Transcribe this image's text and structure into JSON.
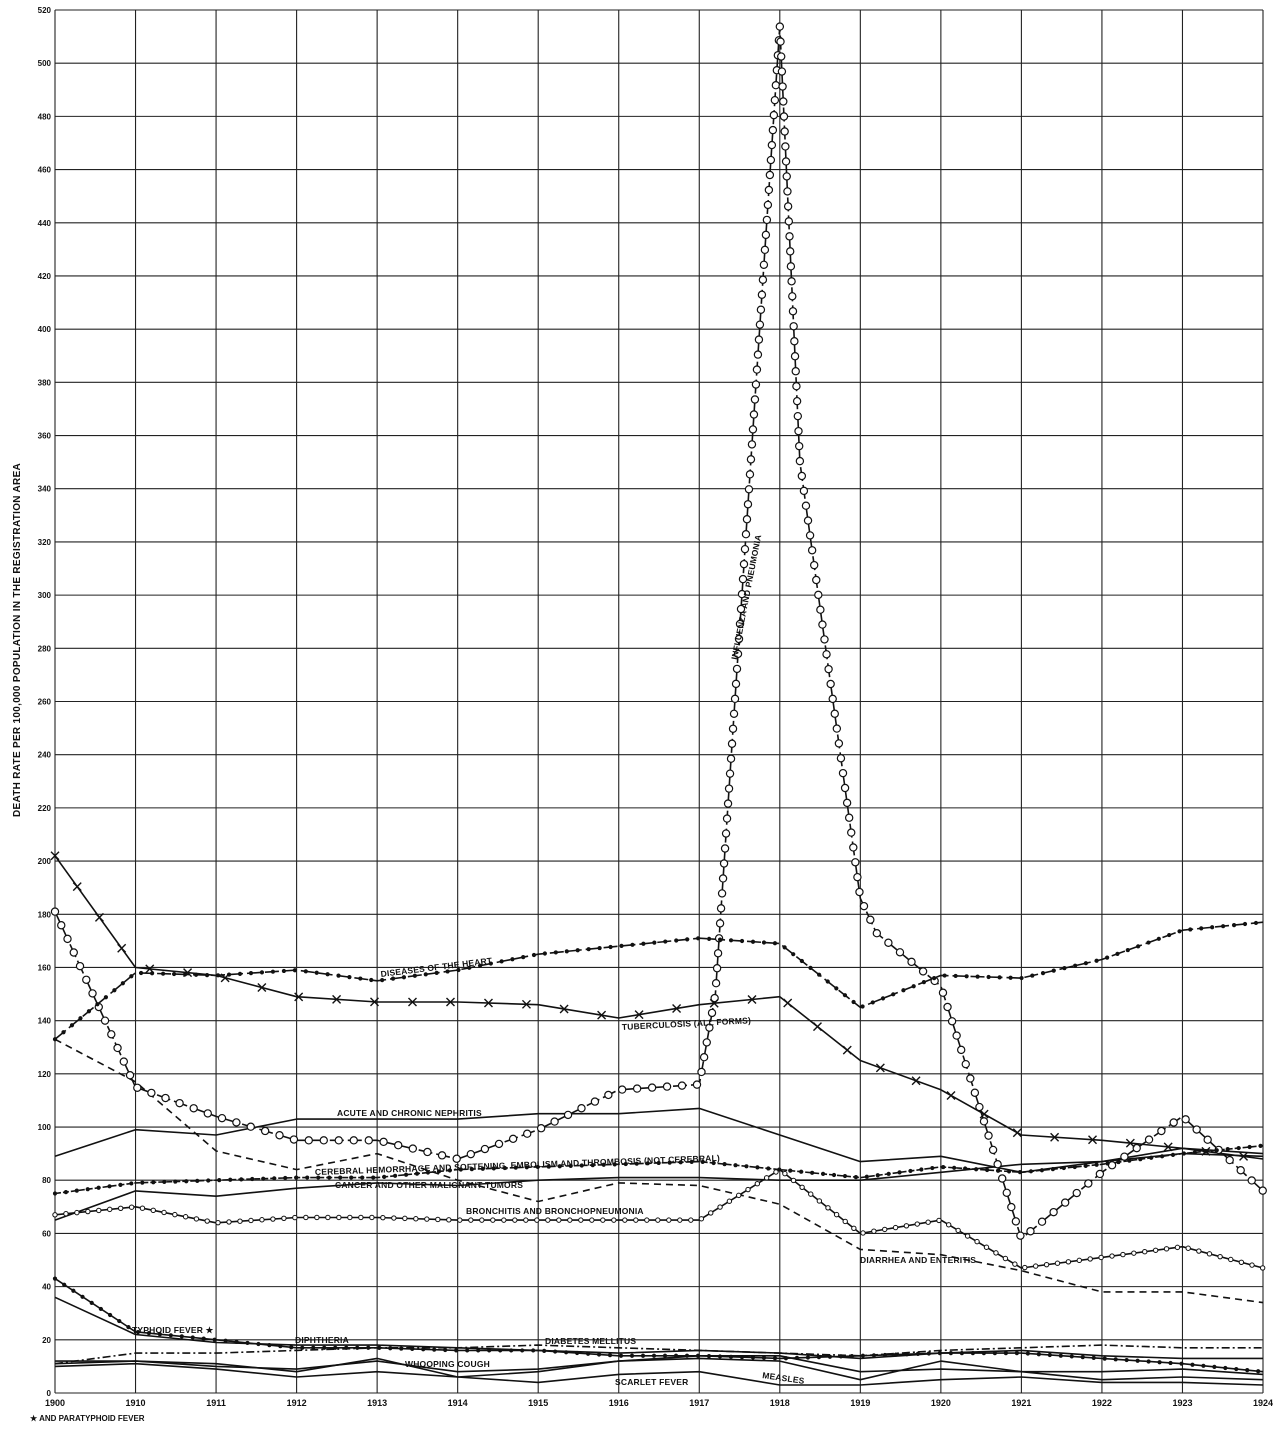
{
  "chart_data": {
    "type": "line",
    "ylabel": "DEATH RATE PER 100,000 POPULATION IN THE REGISTRATION AREA",
    "footnote": "★ AND PARATYPHOID FEVER",
    "x_tick_labels": [
      "1900",
      "1910",
      "1911",
      "1912",
      "1913",
      "1914",
      "1915",
      "1916",
      "1917",
      "1918",
      "1919",
      "1920",
      "1921",
      "1922",
      "1923",
      "1924"
    ],
    "y_tick_labels": [
      "0",
      "20",
      "40",
      "60",
      "80",
      "100",
      "120",
      "140",
      "160",
      "180",
      "200",
      "220",
      "240",
      "260",
      "280",
      "300",
      "320",
      "340",
      "360",
      "380",
      "400",
      "420",
      "440",
      "460",
      "480",
      "500",
      "520"
    ],
    "ylim": [
      0,
      520
    ],
    "grid": true,
    "series": [
      {
        "name": "INFLUENZA AND PNEUMONIA",
        "color": "#111111",
        "marker": "open-circle",
        "dash": "14,4",
        "x": [
          1900,
          1910,
          1911,
          1912,
          1913,
          1914,
          1915,
          1916,
          1917,
          1917.2,
          1918,
          1918.25,
          1919,
          1919.2,
          1920,
          1921,
          1922,
          1923,
          1924
        ],
        "y": [
          181,
          115,
          104,
          95,
          95,
          88,
          99,
          114,
          116,
          150,
          514,
          350,
          186,
          173,
          153,
          58,
          83,
          104,
          76
        ]
      },
      {
        "name": "DISEASES OF THE HEART",
        "color": "#111111",
        "marker": "dot",
        "dash": "14,4",
        "x": [
          1900,
          1910,
          1911,
          1912,
          1913,
          1914,
          1915,
          1916,
          1917,
          1918,
          1919,
          1920,
          1921,
          1922,
          1923,
          1924
        ],
        "y": [
          133,
          158,
          157,
          159,
          155,
          159,
          165,
          168,
          171,
          169,
          145,
          157,
          156,
          163,
          174,
          177
        ]
      },
      {
        "name": "TUBERCULOSIS (ALL FORMS)",
        "color": "#111111",
        "marker": "x",
        "dash": "",
        "x": [
          1900,
          1910,
          1911,
          1912,
          1913,
          1914,
          1915,
          1916,
          1917,
          1918,
          1919,
          1920,
          1921,
          1922,
          1923,
          1924
        ],
        "y": [
          202,
          160,
          157,
          149,
          147,
          147,
          146,
          141,
          146,
          149,
          125,
          114,
          97,
          95,
          92,
          88
        ]
      },
      {
        "name": "ACUTE AND CHRONIC NEPHRITIS",
        "color": "#111111",
        "marker": "none",
        "dash": "",
        "x": [
          1900,
          1910,
          1911,
          1912,
          1913,
          1914,
          1915,
          1916,
          1917,
          1918,
          1919,
          1920,
          1921,
          1922,
          1923,
          1924
        ],
        "y": [
          89,
          99,
          97,
          103,
          103,
          103,
          105,
          105,
          107,
          97,
          87,
          89,
          83,
          87,
          90,
          89
        ]
      },
      {
        "name": "CEREBRAL HEMORRHAGE AND SOFTENING, EMBOLISM AND THROMBOSIS (NOT CEREBRAL)",
        "color": "#111111",
        "marker": "dot",
        "dash": "6,2",
        "x": [
          1900,
          1910,
          1911,
          1912,
          1913,
          1914,
          1915,
          1916,
          1917,
          1918,
          1919,
          1920,
          1921,
          1922,
          1923,
          1924
        ],
        "y": [
          75,
          79,
          80,
          81,
          81,
          84,
          85,
          86,
          87,
          84,
          81,
          85,
          83,
          86,
          90,
          93
        ]
      },
      {
        "name": "CANCER AND OTHER MALIGNANT TUMORS",
        "color": "#111111",
        "marker": "none",
        "dash": "",
        "x": [
          1900,
          1910,
          1911,
          1912,
          1913,
          1914,
          1915,
          1916,
          1917,
          1918,
          1919,
          1920,
          1921,
          1922,
          1923,
          1924
        ],
        "y": [
          65,
          76,
          74,
          77,
          79,
          78,
          80,
          81,
          81,
          80,
          80,
          83,
          86,
          87,
          92,
          90
        ]
      },
      {
        "name": "BRONCHITIS AND BRONCHOPNEUMONIA",
        "color": "#111111",
        "marker": "small-circle",
        "dash": "",
        "x": [
          1900,
          1910,
          1911,
          1912,
          1913,
          1914,
          1915,
          1916,
          1917,
          1918,
          1919,
          1920,
          1921,
          1922,
          1923,
          1924
        ],
        "y": [
          67,
          70,
          64,
          66,
          66,
          65,
          65,
          65,
          65,
          84,
          60,
          65,
          47,
          51,
          55,
          47
        ]
      },
      {
        "name": "DIARRHEA AND ENTERITIS",
        "color": "#111111",
        "marker": "none",
        "dash": "7,5",
        "x": [
          1900,
          1910,
          1911,
          1912,
          1913,
          1914,
          1915,
          1916,
          1917,
          1918,
          1919,
          1920,
          1921,
          1922,
          1923,
          1924
        ],
        "y": [
          133,
          117,
          91,
          84,
          90,
          80,
          72,
          79,
          78,
          71,
          54,
          52,
          46,
          38,
          38,
          34
        ]
      },
      {
        "name": "TYPHOID FEVER ★",
        "color": "#111111",
        "marker": "dot",
        "dash": "",
        "x": [
          1900,
          1910,
          1911,
          1912,
          1913,
          1914,
          1915,
          1916,
          1917,
          1918,
          1919,
          1920,
          1921,
          1922,
          1923,
          1924
        ],
        "y": [
          43,
          23,
          20,
          17,
          17,
          16,
          16,
          14,
          14,
          13,
          14,
          15,
          15,
          13,
          11,
          8
        ]
      },
      {
        "name": "DIPHTHERIA",
        "color": "#111111",
        "marker": "none",
        "dash": "",
        "x": [
          1900,
          1910,
          1911,
          1912,
          1913,
          1914,
          1915,
          1916,
          1917,
          1918,
          1919,
          1920,
          1921,
          1922,
          1923,
          1924
        ],
        "y": [
          36,
          22,
          19,
          18,
          18,
          17,
          16,
          15,
          16,
          15,
          13,
          15,
          16,
          14,
          13,
          13
        ]
      },
      {
        "name": "DIABETES MELLITUS",
        "color": "#111111",
        "marker": "none",
        "dash": "8,3,2,3",
        "x": [
          1900,
          1910,
          1911,
          1912,
          1913,
          1914,
          1915,
          1916,
          1917,
          1918,
          1919,
          1920,
          1921,
          1922,
          1923,
          1924
        ],
        "y": [
          11,
          15,
          15,
          16,
          17,
          17,
          18,
          17,
          16,
          15,
          14,
          16,
          17,
          18,
          17,
          17
        ]
      },
      {
        "name": "WHOOPING COUGH",
        "color": "#111111",
        "marker": "none",
        "dash": "",
        "x": [
          1900,
          1910,
          1911,
          1912,
          1913,
          1914,
          1915,
          1916,
          1917,
          1918,
          1919,
          1920,
          1921,
          1922,
          1923,
          1924
        ],
        "y": [
          12,
          12,
          10,
          9,
          12,
          8,
          9,
          12,
          13,
          12,
          5,
          12,
          8,
          8,
          9,
          7
        ]
      },
      {
        "name": "SCARLET FEVER",
        "color": "#111111",
        "marker": "none",
        "dash": "",
        "x": [
          1900,
          1910,
          1911,
          1912,
          1913,
          1914,
          1915,
          1916,
          1917,
          1918,
          1919,
          1920,
          1921,
          1922,
          1923,
          1924
        ],
        "y": [
          10,
          11,
          9,
          6,
          8,
          6,
          4,
          7,
          8,
          3,
          3,
          5,
          6,
          4,
          4,
          3
        ]
      },
      {
        "name": "MEASLES",
        "color": "#111111",
        "marker": "none",
        "dash": "",
        "x": [
          1900,
          1910,
          1911,
          1912,
          1913,
          1914,
          1915,
          1916,
          1917,
          1918,
          1919,
          1920,
          1921,
          1922,
          1923,
          1924
        ],
        "y": [
          11,
          12,
          11,
          8,
          13,
          6,
          8,
          12,
          14,
          14,
          8,
          9,
          8,
          5,
          6,
          5
        ]
      }
    ]
  },
  "labels": {
    "influenza": "INFLUENZA AND PNEUMONIA",
    "heart": "DISEASES OF THE HEART",
    "tuberculosis": "TUBERCULOSIS (ALL FORMS)",
    "nephritis": "ACUTE AND CHRONIC NEPHRITIS",
    "cerebral": "CEREBRAL HEMORRHAGE AND SOFTENING, EMBOLISM AND THROMBOSIS (NOT CEREBRAL)",
    "cancer": "CANCER AND OTHER MALIGNANT TUMORS",
    "bronchitis": "BRONCHITIS AND BRONCHOPNEUMONIA",
    "diarrhea": "DIARRHEA AND ENTERITIS",
    "typhoid": "TYPHOID FEVER ★",
    "diphtheria": "DIPHTHERIA",
    "diabetes": "DIABETES MELLITUS",
    "whooping": "WHOOPING COUGH",
    "scarlet": "SCARLET FEVER",
    "measles": "MEASLES"
  }
}
